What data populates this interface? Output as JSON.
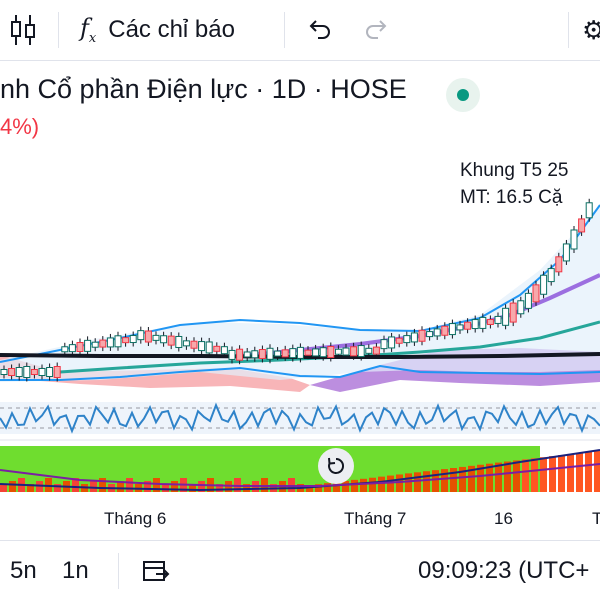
{
  "toolbar": {
    "indicators_label": "Các chỉ báo",
    "fx_label": "fx"
  },
  "symbol": {
    "title": "nh Cổ phần Điện lực · 1D · HOSE",
    "change": "4%)"
  },
  "annotation": {
    "line1": "Khung T5 25",
    "line2": "MT: 16.5 Cặ"
  },
  "xaxis": {
    "labels": [
      "Tháng 6",
      "Tháng 7",
      "16",
      "T"
    ]
  },
  "bottom": {
    "range_5d": "5n",
    "range_1m": "1n",
    "time": "09:09:23 (UTC+"
  },
  "colors": {
    "up": "#089981",
    "down": "#f23645",
    "accent": "#2962ff",
    "bollinger": "#2196f3",
    "ma_purple": "#9c27b0",
    "ma_teal": "#26a69a"
  },
  "icons": {
    "candles": "candlestick-icon",
    "fx": "function-icon",
    "undo": "undo-icon",
    "redo": "redo-icon",
    "settings": "settings-icon",
    "compare": "compare-dates-icon",
    "reset": "reset-chart-icon"
  }
}
